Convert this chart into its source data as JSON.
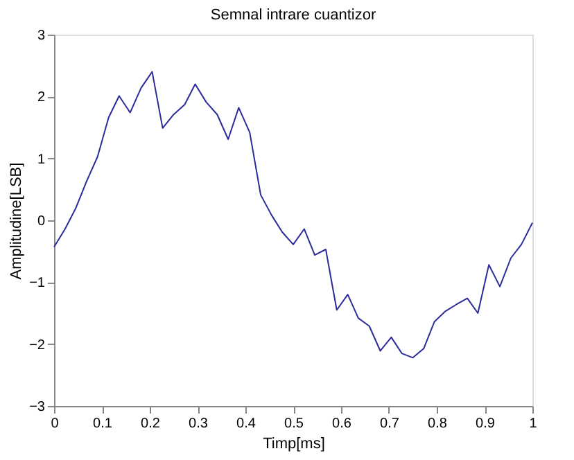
{
  "chart_data": {
    "type": "line",
    "title": "Semnal intrare cuantizor",
    "xlabel": "Timp[ms]",
    "ylabel": "Amplitudine[LSB]",
    "x": [
      0,
      0.023,
      0.045,
      0.068,
      0.091,
      0.114,
      0.136,
      0.159,
      0.182,
      0.205,
      0.227,
      0.25,
      0.273,
      0.295,
      0.318,
      0.341,
      0.364,
      0.386,
      0.409,
      0.432,
      0.455,
      0.477,
      0.5,
      0.523,
      0.545,
      0.568,
      0.591,
      0.614,
      0.636,
      0.659,
      0.682,
      0.705,
      0.727,
      0.75,
      0.773,
      0.795,
      0.818,
      0.841,
      0.864,
      0.886,
      0.909,
      0.932,
      0.955,
      0.977,
      1
    ],
    "series": [
      {
        "color": "#2b2b9c",
        "values": [
          -0.43,
          -0.14,
          0.19,
          0.63,
          1.03,
          1.66,
          2.01,
          1.74,
          2.14,
          2.4,
          1.49,
          1.71,
          1.87,
          2.2,
          1.91,
          1.71,
          1.31,
          1.82,
          1.42,
          0.41,
          0.08,
          -0.19,
          -0.39,
          -0.14,
          -0.56,
          -0.47,
          -1.45,
          -1.2,
          -1.58,
          -1.71,
          -2.11,
          -1.89,
          -2.15,
          -2.22,
          -2.07,
          -1.64,
          -1.47,
          -1.36,
          -1.26,
          -1.5,
          -0.72,
          -1.07,
          -0.61,
          -0.39,
          -0.04
        ]
      }
    ],
    "xlim": [
      0,
      1
    ],
    "xticks": [
      0,
      0.1,
      0.2,
      0.3,
      0.4,
      0.5,
      0.6,
      0.7,
      0.8,
      0.9,
      1
    ],
    "ylim": [
      -3,
      3
    ],
    "yticks": [
      -3,
      -2,
      -1,
      0,
      1,
      2,
      3
    ],
    "grid": false,
    "marker": "none",
    "line_style": "solid"
  }
}
